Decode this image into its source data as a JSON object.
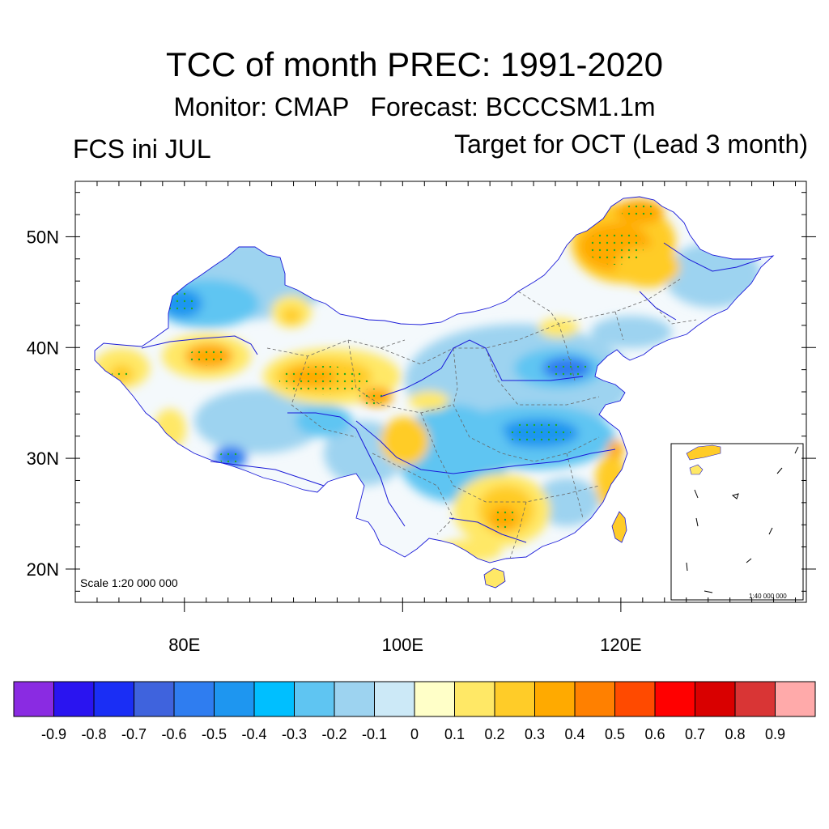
{
  "title": "TCC of month PREC: 1991-2020",
  "subtitle": "Monitor: CMAP   Forecast: BCCCSM1.1m",
  "left_label": "FCS ini JUL",
  "right_label": "Target for OCT (Lead 3 month)",
  "scale_label": "Scale 1:20 000 000",
  "inset_scale_label": "1:40 000 000",
  "map": {
    "lon_range": [
      70,
      137
    ],
    "lat_range": [
      17,
      55
    ],
    "lat_ticks": [
      {
        "lat": 50,
        "label": "50N"
      },
      {
        "lat": 40,
        "label": "40N"
      },
      {
        "lat": 30,
        "label": "30N"
      },
      {
        "lat": 20,
        "label": "20N"
      }
    ],
    "lon_ticks": [
      {
        "lon": 80,
        "label": "80E"
      },
      {
        "lon": 100,
        "label": "100E"
      },
      {
        "lon": 120,
        "label": "120E"
      }
    ]
  },
  "colorbar": {
    "colors": [
      "#8a2be2",
      "#2a14f0",
      "#1a2ef5",
      "#3f63dd",
      "#2f7df0",
      "#1e96f0",
      "#00bfff",
      "#5fc5f2",
      "#9dd3f0",
      "#cce9f7",
      "#ffffc8",
      "#ffe866",
      "#ffcc28",
      "#ffaa00",
      "#ff8000",
      "#ff4a00",
      "#ff0000",
      "#d90000",
      "#d93535",
      "#ffaaaa"
    ],
    "labels": [
      "-0.9",
      "-0.8",
      "-0.7",
      "-0.6",
      "-0.5",
      "-0.4",
      "-0.3",
      "-0.2",
      "-0.1",
      "0",
      "0.1",
      "0.2",
      "0.3",
      "0.4",
      "0.5",
      "0.6",
      "0.7",
      "0.8",
      "0.9"
    ]
  },
  "colors": {
    "china_fill": "#f4f9fc",
    "river": "#1a1ad8",
    "boundary": "#666666",
    "significance_dots": "#22aa22"
  }
}
